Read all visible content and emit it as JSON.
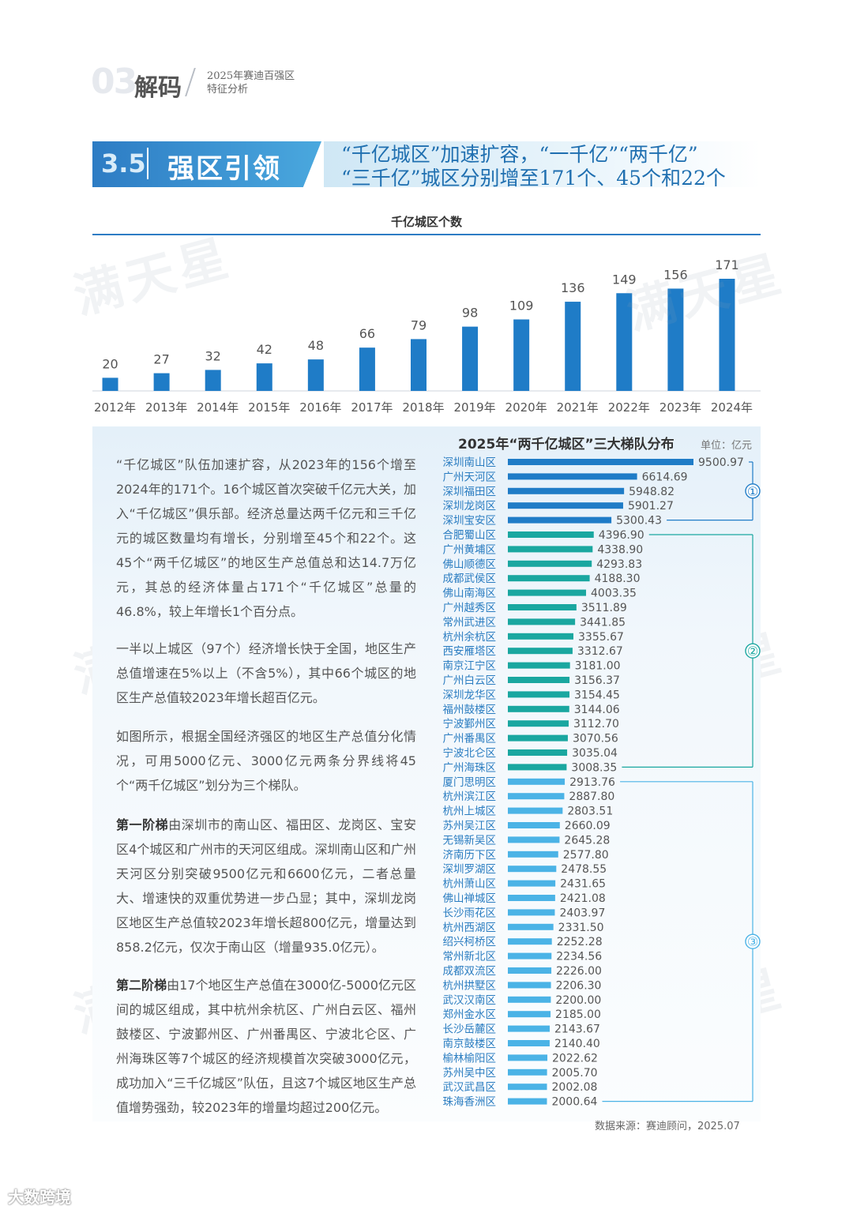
{
  "header": {
    "chapter_num": "03",
    "chapter_title": "解码",
    "subtitle_line1": "2025年赛迪百强区",
    "subtitle_line2": "特征分析"
  },
  "section": {
    "number": "3.5",
    "name": "强区引领",
    "headline_line1": "“千亿城区”加速扩容，“一千亿”“两千亿”",
    "headline_line2": "“三千亿”城区分别增至171个、45个和22个"
  },
  "watermark": "满天星",
  "text": {
    "p1": "“千亿城区”队伍加速扩容，从2023年的156个增至2024年的171个。16个城区首次突破千亿元大关，加入“千亿城区”俱乐部。经济总量达两千亿元和三千亿元的城区数量均有增长，分别增至45个和22个。这45个“两千亿城区”的地区生产总值总和达14.7万亿元，其总的经济体量占171个“千亿城区”总量的46.8%，较上年增长1个百分点。",
    "p2": "一半以上城区（97个）经济增长快于全国，地区生产总值增速在5%以上（不含5%），其中66个城区的地区生产总值较2023年增长超百亿元。",
    "p3": "如图所示，根据全国经济强区的地区生产总值分化情况，可用5000亿元、3000亿元两条分界线将45个“两千亿城区”划分为三个梯队。",
    "p4_bold": "第一阶梯",
    "p4": "由深圳市的南山区、福田区、龙岗区、宝安区4个城区和广州市的天河区组成。深圳南山区和广州天河区分别突破9500亿元和6600亿元，二者总量大、增速快的双重优势进一步凸显；其中，深圳龙岗区地区生产总值较2023年增长超800亿元，增量达到858.2亿元，仅次于南山区（增量935.0亿元）。",
    "p5_bold": "第二阶梯",
    "p5": "由17个地区生产总值在3000亿-5000亿元区间的城区组成，其中杭州余杭区、广州白云区、福州鼓楼区、宁波鄞州区、广州番禺区、宁波北仑区、广州海珠区等7个城区的经济规模首次突破3000亿元，成功加入“三千亿城区”队伍，且这7个城区地区生产总值增势强劲，较2023年的增量均超过200亿元。"
  },
  "source": "数据来源：赛迪顾问，2025.07",
  "footer_logo": "大数跨境",
  "chart_data": [
    {
      "type": "bar",
      "title": "千亿城区个数",
      "categories": [
        "2012年",
        "2013年",
        "2014年",
        "2015年",
        "2016年",
        "2017年",
        "2018年",
        "2019年",
        "2020年",
        "2021年",
        "2022年",
        "2023年",
        "2024年"
      ],
      "values": [
        20,
        27,
        32,
        42,
        48,
        66,
        79,
        98,
        109,
        136,
        149,
        156,
        171
      ],
      "ylim": [
        0,
        171
      ],
      "grid": false,
      "color": "#1f7cc7"
    },
    {
      "type": "bar",
      "orientation": "horizontal",
      "title": "2025年“两千亿城区”三大梯队分布",
      "unit": "单位：亿元",
      "xlim": [
        0,
        9500.97
      ],
      "categories": [
        "深圳南山区",
        "广州天河区",
        "深圳福田区",
        "深圳龙岗区",
        "深圳宝安区",
        "合肥蜀山区",
        "广州黄埔区",
        "佛山顺德区",
        "成都武侯区",
        "佛山南海区",
        "广州越秀区",
        "常州武进区",
        "杭州余杭区",
        "西安雁塔区",
        "南京江宁区",
        "广州白云区",
        "深圳龙华区",
        "福州鼓楼区",
        "宁波鄞州区",
        "广州番禺区",
        "宁波北仑区",
        "广州海珠区",
        "厦门思明区",
        "杭州滨江区",
        "杭州上城区",
        "苏州吴江区",
        "无锡新吴区",
        "济南历下区",
        "深圳罗湖区",
        "杭州萧山区",
        "佛山禅城区",
        "长沙雨花区",
        "杭州西湖区",
        "绍兴柯桥区",
        "常州新北区",
        "成都双流区",
        "杭州拱墅区",
        "武汉汉南区",
        "郑州金水区",
        "长沙岳麓区",
        "南京鼓楼区",
        "榆林榆阳区",
        "苏州吴中区",
        "武汉武昌区",
        "珠海香洲区"
      ],
      "values": [
        9500.97,
        6614.69,
        5948.82,
        5901.27,
        5300.43,
        4396.9,
        4338.9,
        4293.83,
        4188.3,
        4003.35,
        3511.89,
        3441.85,
        3355.67,
        3312.67,
        3181.0,
        3156.37,
        3154.45,
        3144.06,
        3112.7,
        3070.56,
        3035.04,
        3008.35,
        2913.76,
        2887.8,
        2803.51,
        2660.09,
        2645.28,
        2577.8,
        2478.55,
        2431.65,
        2421.08,
        2403.97,
        2331.5,
        2252.28,
        2234.56,
        2226.0,
        2206.3,
        2200.0,
        2185.0,
        2143.67,
        2140.4,
        2022.62,
        2005.7,
        2002.08,
        2000.64
      ],
      "tiers": [
        {
          "label": "①",
          "count": 5,
          "color": "#1f7cc7"
        },
        {
          "label": "②",
          "count": 17,
          "color": "#1aa7a0"
        },
        {
          "label": "③",
          "count": 23,
          "color": "#4bb3e6"
        }
      ]
    }
  ]
}
